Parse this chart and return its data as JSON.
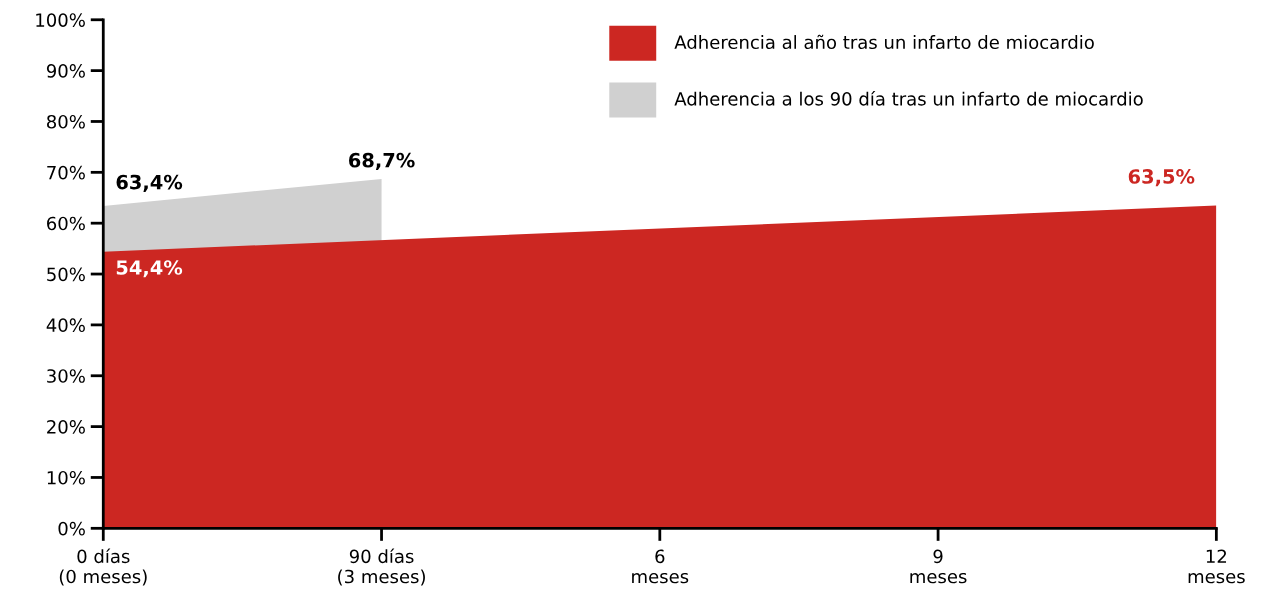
{
  "chart_data": {
    "type": "area",
    "series": [
      {
        "name": "Adherencia al año tras un infarto de miocardio",
        "color": "#cc2722",
        "x": [
          0,
          12
        ],
        "values": [
          54.4,
          63.5
        ],
        "value_labels": [
          "54,4%",
          "63,5%"
        ]
      },
      {
        "name": "Adherencia a los 90 día tras un infarto de miocardio",
        "color": "#d0d0d0",
        "x": [
          0,
          3
        ],
        "values": [
          63.4,
          68.7
        ],
        "value_labels": [
          "63,4%",
          "68,7%"
        ]
      }
    ],
    "xlim": [
      0,
      12
    ],
    "xticks": [
      {
        "value": 0,
        "label": "0 días\n(0 meses)"
      },
      {
        "value": 3,
        "label": "90 días\n(3 meses)"
      },
      {
        "value": 6,
        "label": "6\nmeses"
      },
      {
        "value": 9,
        "label": "9\nmeses"
      },
      {
        "value": 12,
        "label": "12\nmeses"
      }
    ],
    "ylim": [
      0,
      100
    ],
    "yticks": [
      {
        "value": 0,
        "label": "0%"
      },
      {
        "value": 10,
        "label": "10%"
      },
      {
        "value": 20,
        "label": "20%"
      },
      {
        "value": 30,
        "label": "30%"
      },
      {
        "value": 40,
        "label": "40%"
      },
      {
        "value": 50,
        "label": "50%"
      },
      {
        "value": 60,
        "label": "60%"
      },
      {
        "value": 70,
        "label": "70%"
      },
      {
        "value": 80,
        "label": "80%"
      },
      {
        "value": 90,
        "label": "90%"
      },
      {
        "value": 100,
        "label": "100%"
      }
    ],
    "grid": false,
    "legend": "top right"
  }
}
